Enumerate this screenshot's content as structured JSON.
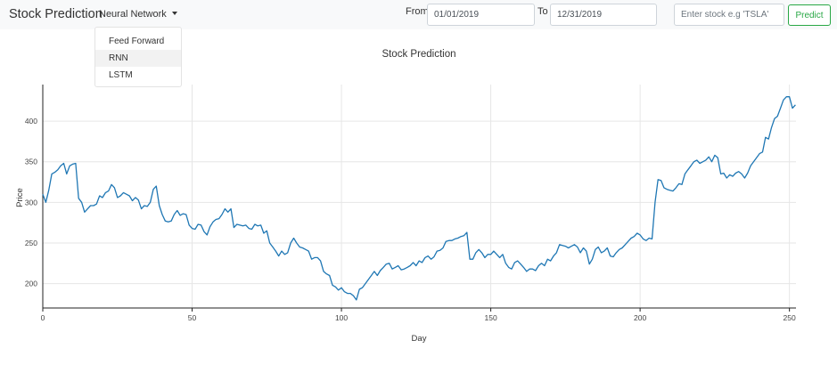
{
  "navbar": {
    "brand": "Stock Prediction",
    "model_menu_label": "Neural Network",
    "from_label": "From",
    "to_label": "To",
    "from_value": "01/01/2019",
    "to_value": "12/31/2019",
    "stock_placeholder": "Enter stock e.g 'TSLA'",
    "predict_label": "Predict",
    "accent_color": "#28a745"
  },
  "dropdown": {
    "items": [
      {
        "label": "Feed Forward"
      },
      {
        "label": "RNN"
      },
      {
        "label": "LSTM"
      }
    ]
  },
  "chart_data": {
    "type": "line",
    "title": "Stock Prediction",
    "xlabel": "Day",
    "ylabel": "Price",
    "xlim": [
      0,
      251
    ],
    "ylim": [
      170,
      445
    ],
    "xticks": [
      0,
      50,
      100,
      150,
      200,
      250
    ],
    "yticks": [
      200,
      250,
      300,
      350,
      400
    ],
    "grid": true,
    "line_color": "#1f77b4",
    "series": [
      {
        "points": [
          [
            0,
            310
          ],
          [
            1,
            300
          ],
          [
            2,
            315
          ],
          [
            3,
            335
          ],
          [
            4,
            337
          ],
          [
            5,
            340
          ],
          [
            6,
            345
          ],
          [
            7,
            348
          ],
          [
            8,
            335
          ],
          [
            9,
            345
          ],
          [
            10,
            347
          ],
          [
            11,
            348
          ],
          [
            12,
            305
          ],
          [
            13,
            300
          ],
          [
            14,
            288
          ],
          [
            15,
            292
          ],
          [
            16,
            296
          ],
          [
            17,
            296
          ],
          [
            18,
            298
          ],
          [
            19,
            308
          ],
          [
            20,
            306
          ],
          [
            21,
            312
          ],
          [
            22,
            314
          ],
          [
            23,
            322
          ],
          [
            24,
            318
          ],
          [
            25,
            306
          ],
          [
            26,
            308
          ],
          [
            27,
            312
          ],
          [
            28,
            310
          ],
          [
            29,
            308
          ],
          [
            30,
            302
          ],
          [
            31,
            306
          ],
          [
            32,
            303
          ],
          [
            33,
            292
          ],
          [
            34,
            296
          ],
          [
            35,
            295
          ],
          [
            36,
            300
          ],
          [
            37,
            316
          ],
          [
            38,
            320
          ],
          [
            39,
            296
          ],
          [
            40,
            285
          ],
          [
            41,
            277
          ],
          [
            42,
            276
          ],
          [
            43,
            277
          ],
          [
            44,
            285
          ],
          [
            45,
            290
          ],
          [
            46,
            284
          ],
          [
            47,
            286
          ],
          [
            48,
            285
          ],
          [
            49,
            272
          ],
          [
            50,
            268
          ],
          [
            51,
            267
          ],
          [
            52,
            273
          ],
          [
            53,
            272
          ],
          [
            54,
            264
          ],
          [
            55,
            260
          ],
          [
            56,
            270
          ],
          [
            57,
            276
          ],
          [
            58,
            279
          ],
          [
            59,
            280
          ],
          [
            60,
            285
          ],
          [
            61,
            292
          ],
          [
            62,
            288
          ],
          [
            63,
            292
          ],
          [
            64,
            269
          ],
          [
            65,
            273
          ],
          [
            66,
            272
          ],
          [
            67,
            271
          ],
          [
            68,
            272
          ],
          [
            69,
            268
          ],
          [
            70,
            267
          ],
          [
            71,
            273
          ],
          [
            72,
            271
          ],
          [
            73,
            272
          ],
          [
            74,
            262
          ],
          [
            75,
            265
          ],
          [
            76,
            250
          ],
          [
            77,
            245
          ],
          [
            78,
            240
          ],
          [
            79,
            234
          ],
          [
            80,
            240
          ],
          [
            81,
            236
          ],
          [
            82,
            238
          ],
          [
            83,
            250
          ],
          [
            84,
            256
          ],
          [
            85,
            250
          ],
          [
            86,
            245
          ],
          [
            87,
            244
          ],
          [
            88,
            242
          ],
          [
            89,
            240
          ],
          [
            90,
            230
          ],
          [
            91,
            232
          ],
          [
            92,
            232
          ],
          [
            93,
            228
          ],
          [
            94,
            215
          ],
          [
            95,
            212
          ],
          [
            96,
            210
          ],
          [
            97,
            198
          ],
          [
            98,
            196
          ],
          [
            99,
            192
          ],
          [
            100,
            195
          ],
          [
            101,
            190
          ],
          [
            102,
            188
          ],
          [
            103,
            188
          ],
          [
            104,
            185
          ],
          [
            105,
            180
          ],
          [
            106,
            193
          ],
          [
            107,
            195
          ],
          [
            108,
            200
          ],
          [
            109,
            205
          ],
          [
            110,
            210
          ],
          [
            111,
            215
          ],
          [
            112,
            210
          ],
          [
            113,
            216
          ],
          [
            114,
            220
          ],
          [
            115,
            224
          ],
          [
            116,
            225
          ],
          [
            117,
            218
          ],
          [
            118,
            220
          ],
          [
            119,
            222
          ],
          [
            120,
            217
          ],
          [
            121,
            218
          ],
          [
            122,
            220
          ],
          [
            123,
            222
          ],
          [
            124,
            226
          ],
          [
            125,
            222
          ],
          [
            126,
            228
          ],
          [
            127,
            226
          ],
          [
            128,
            232
          ],
          [
            129,
            234
          ],
          [
            130,
            230
          ],
          [
            131,
            233
          ],
          [
            132,
            240
          ],
          [
            133,
            241
          ],
          [
            134,
            244
          ],
          [
            135,
            252
          ],
          [
            136,
            253
          ],
          [
            137,
            253
          ],
          [
            138,
            255
          ],
          [
            139,
            256
          ],
          [
            140,
            258
          ],
          [
            141,
            259
          ],
          [
            142,
            263
          ],
          [
            143,
            230
          ],
          [
            144,
            230
          ],
          [
            145,
            238
          ],
          [
            146,
            242
          ],
          [
            147,
            238
          ],
          [
            148,
            232
          ],
          [
            149,
            236
          ],
          [
            150,
            236
          ],
          [
            151,
            240
          ],
          [
            152,
            236
          ],
          [
            153,
            232
          ],
          [
            154,
            236
          ],
          [
            155,
            225
          ],
          [
            156,
            220
          ],
          [
            157,
            218
          ],
          [
            158,
            226
          ],
          [
            159,
            228
          ],
          [
            160,
            224
          ],
          [
            161,
            220
          ],
          [
            162,
            215
          ],
          [
            163,
            218
          ],
          [
            164,
            218
          ],
          [
            165,
            216
          ],
          [
            166,
            222
          ],
          [
            167,
            225
          ],
          [
            168,
            222
          ],
          [
            169,
            230
          ],
          [
            170,
            228
          ],
          [
            171,
            234
          ],
          [
            172,
            238
          ],
          [
            173,
            248
          ],
          [
            174,
            247
          ],
          [
            175,
            246
          ],
          [
            176,
            244
          ],
          [
            177,
            246
          ],
          [
            178,
            248
          ],
          [
            179,
            245
          ],
          [
            180,
            238
          ],
          [
            181,
            244
          ],
          [
            182,
            240
          ],
          [
            183,
            224
          ],
          [
            184,
            230
          ],
          [
            185,
            242
          ],
          [
            186,
            245
          ],
          [
            187,
            238
          ],
          [
            188,
            240
          ],
          [
            189,
            244
          ],
          [
            190,
            234
          ],
          [
            191,
            233
          ],
          [
            192,
            238
          ],
          [
            193,
            242
          ],
          [
            194,
            244
          ],
          [
            195,
            248
          ],
          [
            196,
            252
          ],
          [
            197,
            256
          ],
          [
            198,
            258
          ],
          [
            199,
            262
          ],
          [
            200,
            260
          ],
          [
            201,
            255
          ],
          [
            202,
            253
          ],
          [
            203,
            256
          ],
          [
            204,
            255
          ],
          [
            205,
            300
          ],
          [
            206,
            328
          ],
          [
            207,
            327
          ],
          [
            208,
            318
          ],
          [
            209,
            316
          ],
          [
            210,
            315
          ],
          [
            211,
            314
          ],
          [
            212,
            318
          ],
          [
            213,
            323
          ],
          [
            214,
            322
          ],
          [
            215,
            335
          ],
          [
            216,
            340
          ],
          [
            217,
            345
          ],
          [
            218,
            350
          ],
          [
            219,
            352
          ],
          [
            220,
            348
          ],
          [
            221,
            350
          ],
          [
            222,
            352
          ],
          [
            223,
            356
          ],
          [
            224,
            350
          ],
          [
            225,
            358
          ],
          [
            226,
            355
          ],
          [
            227,
            335
          ],
          [
            228,
            336
          ],
          [
            229,
            330
          ],
          [
            230,
            334
          ],
          [
            231,
            332
          ],
          [
            232,
            336
          ],
          [
            233,
            338
          ],
          [
            234,
            335
          ],
          [
            235,
            330
          ],
          [
            236,
            336
          ],
          [
            237,
            345
          ],
          [
            238,
            350
          ],
          [
            239,
            355
          ],
          [
            240,
            360
          ],
          [
            241,
            362
          ],
          [
            242,
            380
          ],
          [
            243,
            378
          ],
          [
            244,
            392
          ],
          [
            245,
            403
          ],
          [
            246,
            406
          ],
          [
            247,
            416
          ],
          [
            248,
            426
          ],
          [
            249,
            430
          ],
          [
            250,
            430
          ],
          [
            251,
            416
          ],
          [
            252,
            420
          ]
        ]
      }
    ]
  }
}
